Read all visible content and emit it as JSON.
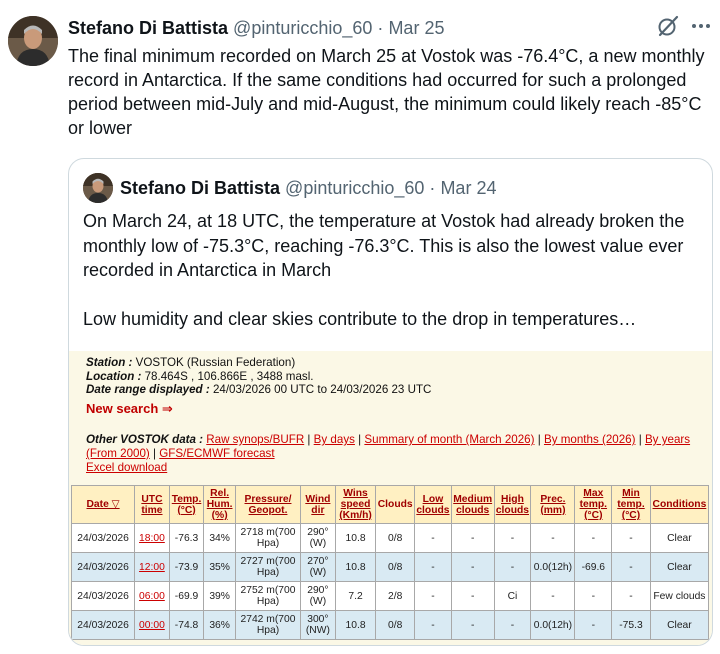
{
  "tweet": {
    "author_name": "Stefano Di Battista",
    "handle": "@pinturicchio_60",
    "separator": "·",
    "date": "Mar 25",
    "text": "The final minimum recorded on March 25 at Vostok was -76.4°C, a new monthly record in Antarctica. If the same conditions had occurred for such a prolonged period between mid-July and mid-August, the minimum could likely reach -85°C or lower"
  },
  "icons": {
    "avatar": "avatar-photo",
    "grok": "grok-slash-icon",
    "more": "more-dots-icon"
  },
  "quote": {
    "author_name": "Stefano Di Battista",
    "handle": "@pinturicchio_60",
    "separator": "·",
    "date": "Mar 24",
    "paragraph1": "On March 24, at 18 UTC, the temperature at Vostok had already broken the monthly low of -75.3°C, reaching -76.3°C. This is also the lowest value ever recorded in Antarctica in March",
    "paragraph2": "Low humidity and clear skies contribute to the drop in temperatures…"
  },
  "station": {
    "station_label": "Station :",
    "station_value": " VOSTOK (Russian Federation)",
    "location_label": "Location :",
    "location_value": " 78.464S , 106.866E , 3488 masl.",
    "range_label": "Date range displayed :",
    "range_value": " 24/03/2026 00 UTC to 24/03/2026 23 UTC",
    "new_search": "New search ⇒",
    "other_label": "Other VOSTOK data :",
    "links": {
      "raw": "Raw synops/BUFR",
      "by_days": "By days",
      "summary": "Summary of month (March 2026)",
      "by_months": "By months (2026)",
      "by_years": "By years (From 2000)",
      "gfs": "GFS/ECMWF forecast",
      "excel": "Excel download"
    },
    "sep": " | "
  },
  "table": {
    "headers": [
      "Date ▽",
      "UTC time",
      "Temp. (°C)",
      "Rel. Hum. (%)",
      "Pressure/ Geopot.",
      "Wind dir",
      "Wins speed (Km/h)",
      "Clouds",
      "Low clouds",
      "Medium clouds",
      "High clouds",
      "Prec. (mm)",
      "Max temp. (°C)",
      "Min temp. (°C)",
      "Conditions"
    ],
    "rows": [
      [
        "24/03/2026",
        "18:00",
        "-76.3",
        "34%",
        "2718 m(700 Hpa)",
        "290° (W)",
        "10.8",
        "0/8",
        "-",
        "-",
        "-",
        "-",
        "-",
        "-",
        "Clear"
      ],
      [
        "24/03/2026",
        "12:00",
        "-73.9",
        "35%",
        "2727 m(700 Hpa)",
        "270° (W)",
        "10.8",
        "0/8",
        "-",
        "-",
        "-",
        "0.0(12h)",
        "-69.6",
        "-",
        "Clear"
      ],
      [
        "24/03/2026",
        "06:00",
        "-69.9",
        "39%",
        "2752 m(700 Hpa)",
        "290° (W)",
        "7.2",
        "2/8",
        "-",
        "-",
        "Ci",
        "-",
        "-",
        "-",
        "Few clouds"
      ],
      [
        "24/03/2026",
        "00:00",
        "-74.8",
        "36%",
        "2742 m(700 Hpa)",
        "300° (NW)",
        "10.8",
        "0/8",
        "-",
        "-",
        "-",
        "0.0(12h)",
        "-",
        "-75.3",
        "Clear"
      ]
    ]
  }
}
